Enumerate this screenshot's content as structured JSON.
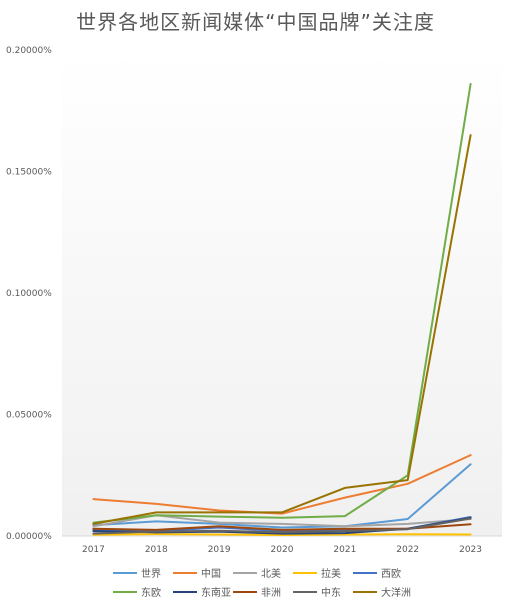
{
  "chart_data": {
    "type": "line",
    "title": "世界各地区新闻媒体“中国品牌”关注度",
    "xlabel": "",
    "ylabel": "",
    "x": [
      "2017",
      "2018",
      "2019",
      "2020",
      "2021",
      "2022",
      "2023"
    ],
    "ylim": [
      0,
      0.2
    ],
    "yticks": [
      0,
      0.05,
      0.1,
      0.15,
      0.2
    ],
    "ytick_labels": [
      "0.00000%",
      "0.05000%",
      "0.10000%",
      "0.15000%",
      "0.20000%"
    ],
    "grid": false,
    "legend_position": "bottom",
    "series": [
      {
        "name": "世界",
        "color": "#5b9bd5",
        "values": [
          0.0045,
          0.006,
          0.005,
          0.0035,
          0.004,
          0.007,
          0.0295
        ]
      },
      {
        "name": "中国",
        "color": "#ed7d31",
        "values": [
          0.0152,
          0.0132,
          0.0105,
          0.0092,
          0.0158,
          0.0215,
          0.0333
        ]
      },
      {
        "name": "北美",
        "color": "#a5a5a5",
        "values": [
          0.004,
          0.0085,
          0.0055,
          0.005,
          0.004,
          0.005,
          0.007
        ]
      },
      {
        "name": "拉美",
        "color": "#ffc000",
        "values": [
          0.0005,
          0.0008,
          0.0006,
          0.0004,
          0.0006,
          0.0007,
          0.0006
        ]
      },
      {
        "name": "西欧",
        "color": "#4472c4",
        "values": [
          0.0025,
          0.002,
          0.0035,
          0.002,
          0.0025,
          0.003,
          0.0078
        ]
      },
      {
        "name": "东欧",
        "color": "#70ad47",
        "values": [
          0.0055,
          0.0085,
          0.008,
          0.0075,
          0.0082,
          0.025,
          0.186
        ]
      },
      {
        "name": "东南亚",
        "color": "#264478",
        "values": [
          0.002,
          0.0015,
          0.0018,
          0.001,
          0.0012,
          0.003,
          0.0075
        ]
      },
      {
        "name": "非洲",
        "color": "#9e480e",
        "values": [
          0.003,
          0.0025,
          0.004,
          0.0025,
          0.003,
          0.003,
          0.0048
        ]
      },
      {
        "name": "中东",
        "color": "#636363",
        "values": [
          0.001,
          0.0018,
          0.0022,
          0.0015,
          0.002,
          0.0028,
          0.0072
        ]
      },
      {
        "name": "大洋洲",
        "color": "#997300",
        "values": [
          0.005,
          0.0097,
          0.0097,
          0.0097,
          0.0198,
          0.023,
          0.165
        ]
      }
    ]
  }
}
